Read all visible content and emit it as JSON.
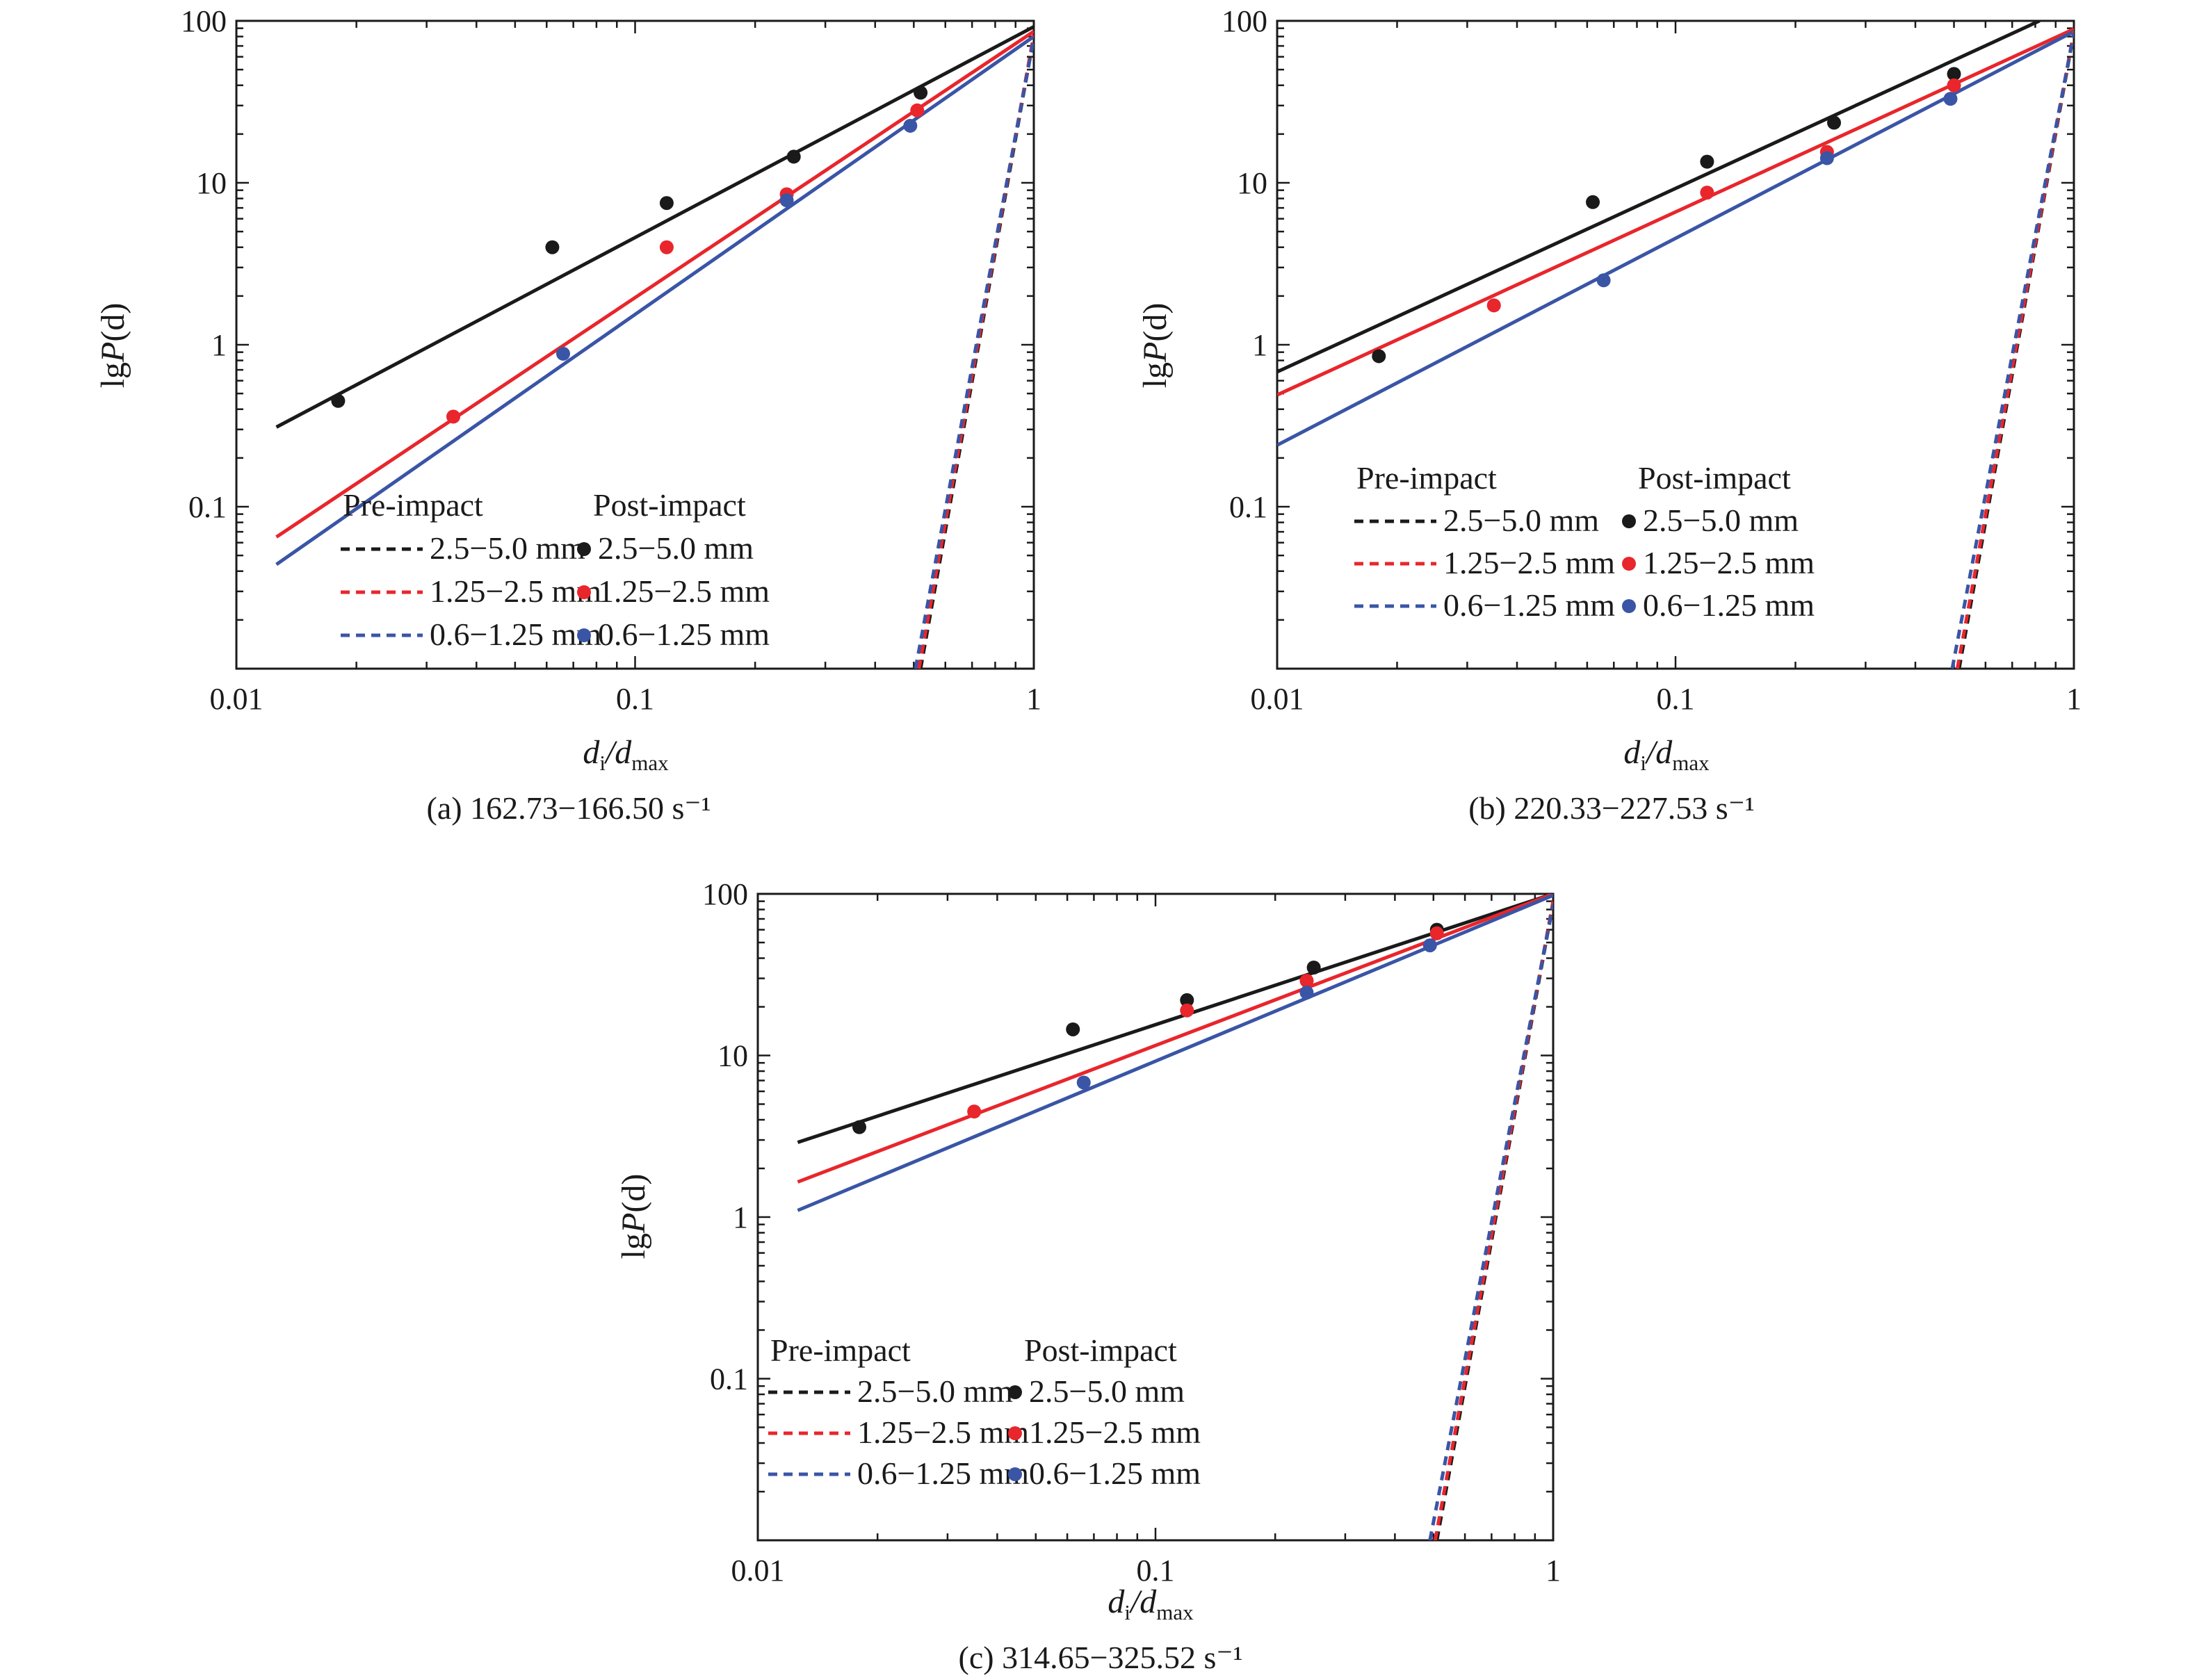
{
  "legend": {
    "pre_header": "Pre-impact",
    "post_header": "Post-impact",
    "labels": [
      "2.5−5.0 mm",
      "1.25−2.5 mm",
      "0.6−1.25 mm"
    ]
  },
  "colors": {
    "black": "#1a1a1a",
    "red": "#e8262c",
    "blue": "#3a55a6"
  },
  "chart_data": [
    {
      "type": "scatter",
      "panel": "a",
      "title": "(a) 162.73−166.50 s⁻¹",
      "xlabel_main": "d",
      "xlabel_sub1": "i",
      "xlabel_mid": "/d",
      "xlabel_sub2": "max",
      "ylabel_pre": "lg",
      "ylabel_var": "P",
      "ylabel_post": "(d)",
      "xscale": "log",
      "yscale": "log",
      "xlim": [
        0.01,
        1
      ],
      "ylim": [
        0.01,
        100
      ],
      "xticks": [
        "0.01",
        "0.1",
        "1"
      ],
      "yticks": [
        "0.1",
        "1",
        "10",
        "100"
      ],
      "legend_position": "bottom-left",
      "fit_lines": [
        {
          "name": "2.5−5.0 mm",
          "color": "black",
          "x": [
            0.0126,
            1.0
          ],
          "y": [
            0.31,
            92
          ]
        },
        {
          "name": "1.25−2.5 mm",
          "color": "red",
          "x": [
            0.0126,
            1.0
          ],
          "y": [
            0.065,
            86
          ]
        },
        {
          "name": "0.6−1.25 mm",
          "color": "blue",
          "x": [
            0.0126,
            1.0
          ],
          "y": [
            0.044,
            80
          ]
        }
      ],
      "pre_impact_lines": [
        {
          "name": "2.5−5.0 mm",
          "color": "black",
          "x": [
            0.52,
            1.0
          ],
          "y": [
            0.01,
            80
          ]
        },
        {
          "name": "1.25−2.5 mm",
          "color": "red",
          "x": [
            0.515,
            1.0
          ],
          "y": [
            0.01,
            82
          ]
        },
        {
          "name": "0.6−1.25 mm",
          "color": "blue",
          "x": [
            0.505,
            1.0
          ],
          "y": [
            0.01,
            78
          ]
        }
      ],
      "post_impact_points": [
        {
          "name": "2.5−5.0 mm",
          "color": "black",
          "x": [
            0.018,
            0.062,
            0.12,
            0.25,
            0.52
          ],
          "y": [
            0.45,
            4.0,
            7.5,
            14.5,
            36
          ]
        },
        {
          "name": "1.25−2.5 mm",
          "color": "red",
          "x": [
            0.035,
            0.12,
            0.24,
            0.51
          ],
          "y": [
            0.36,
            4.0,
            8.5,
            28
          ]
        },
        {
          "name": "0.6−1.25 mm",
          "color": "blue",
          "x": [
            0.066,
            0.24,
            0.49
          ],
          "y": [
            0.88,
            7.8,
            22.5
          ]
        }
      ]
    },
    {
      "type": "scatter",
      "panel": "b",
      "title": "(b) 220.33−227.53 s⁻¹",
      "xlabel_main": "d",
      "xlabel_sub1": "i",
      "xlabel_mid": "/d",
      "xlabel_sub2": "max",
      "ylabel_pre": "lg",
      "ylabel_var": "P",
      "ylabel_post": "(d)",
      "xscale": "log",
      "yscale": "log",
      "xlim": [
        0.01,
        1
      ],
      "ylim": [
        0.01,
        100
      ],
      "xticks": [
        "0.01",
        "0.1",
        "1"
      ],
      "yticks": [
        "0.1",
        "1",
        "10",
        "100"
      ],
      "legend_position": "bottom-center",
      "fit_lines": [
        {
          "name": "2.5−5.0 mm",
          "color": "black",
          "x": [
            0.01,
            0.82
          ],
          "y": [
            0.68,
            100
          ]
        },
        {
          "name": "1.25−2.5 mm",
          "color": "red",
          "x": [
            0.01,
            1.0
          ],
          "y": [
            0.49,
            89
          ]
        },
        {
          "name": "0.6−1.25 mm",
          "color": "blue",
          "x": [
            0.01,
            1.0
          ],
          "y": [
            0.24,
            86
          ]
        }
      ],
      "pre_impact_lines": [
        {
          "name": "2.5−5.0 mm",
          "color": "black",
          "x": [
            0.515,
            1.0
          ],
          "y": [
            0.01,
            85
          ]
        },
        {
          "name": "1.25−2.5 mm",
          "color": "red",
          "x": [
            0.51,
            1.0
          ],
          "y": [
            0.01,
            86
          ]
        },
        {
          "name": "0.6−1.25 mm",
          "color": "blue",
          "x": [
            0.495,
            1.0
          ],
          "y": [
            0.01,
            84
          ]
        }
      ],
      "post_impact_points": [
        {
          "name": "2.5−5.0 mm",
          "color": "black",
          "x": [
            0.018,
            0.062,
            0.12,
            0.25,
            0.5
          ],
          "y": [
            0.85,
            7.6,
            13.5,
            23.5,
            47
          ]
        },
        {
          "name": "1.25−2.5 mm",
          "color": "red",
          "x": [
            0.035,
            0.12,
            0.24,
            0.5
          ],
          "y": [
            1.75,
            8.7,
            15.5,
            40
          ]
        },
        {
          "name": "0.6−1.25 mm",
          "color": "blue",
          "x": [
            0.066,
            0.24,
            0.49
          ],
          "y": [
            2.5,
            14.2,
            33
          ]
        }
      ]
    },
    {
      "type": "scatter",
      "panel": "c",
      "title": "(c) 314.65−325.52 s⁻¹",
      "xlabel_main": "d",
      "xlabel_sub1": "i",
      "xlabel_mid": "/d",
      "xlabel_sub2": "max",
      "ylabel_pre": "lg",
      "ylabel_var": "P",
      "ylabel_post": "(d)",
      "xscale": "log",
      "yscale": "log",
      "xlim": [
        0.01,
        1
      ],
      "ylim": [
        0.01,
        100
      ],
      "xticks": [
        "0.01",
        "0.1",
        "1"
      ],
      "yticks": [
        "0.1",
        "1",
        "10",
        "100"
      ],
      "legend_position": "bottom-left",
      "fit_lines": [
        {
          "name": "2.5−5.0 mm",
          "color": "black",
          "x": [
            0.0126,
            1.0
          ],
          "y": [
            2.9,
            100
          ]
        },
        {
          "name": "1.25−2.5 mm",
          "color": "red",
          "x": [
            0.0126,
            1.0
          ],
          "y": [
            1.65,
            100
          ]
        },
        {
          "name": "0.6−1.25 mm",
          "color": "blue",
          "x": [
            0.0126,
            1.0
          ],
          "y": [
            1.1,
            98
          ]
        }
      ],
      "pre_impact_lines": [
        {
          "name": "2.5−5.0 mm",
          "color": "black",
          "x": [
            0.51,
            1.0
          ],
          "y": [
            0.01,
            88
          ]
        },
        {
          "name": "1.25−2.5 mm",
          "color": "red",
          "x": [
            0.505,
            1.0
          ],
          "y": [
            0.01,
            90
          ]
        },
        {
          "name": "0.6−1.25 mm",
          "color": "blue",
          "x": [
            0.49,
            1.0
          ],
          "y": [
            0.01,
            86
          ]
        }
      ],
      "post_impact_points": [
        {
          "name": "2.5−5.0 mm",
          "color": "black",
          "x": [
            0.018,
            0.062,
            0.12,
            0.25,
            0.51
          ],
          "y": [
            3.6,
            14.5,
            22,
            35,
            60
          ]
        },
        {
          "name": "1.25−2.5 mm",
          "color": "red",
          "x": [
            0.035,
            0.12,
            0.24,
            0.51
          ],
          "y": [
            4.5,
            19,
            29,
            57
          ]
        },
        {
          "name": "0.6−1.25 mm",
          "color": "blue",
          "x": [
            0.066,
            0.24,
            0.49
          ],
          "y": [
            6.8,
            24.5,
            48
          ]
        }
      ]
    }
  ]
}
